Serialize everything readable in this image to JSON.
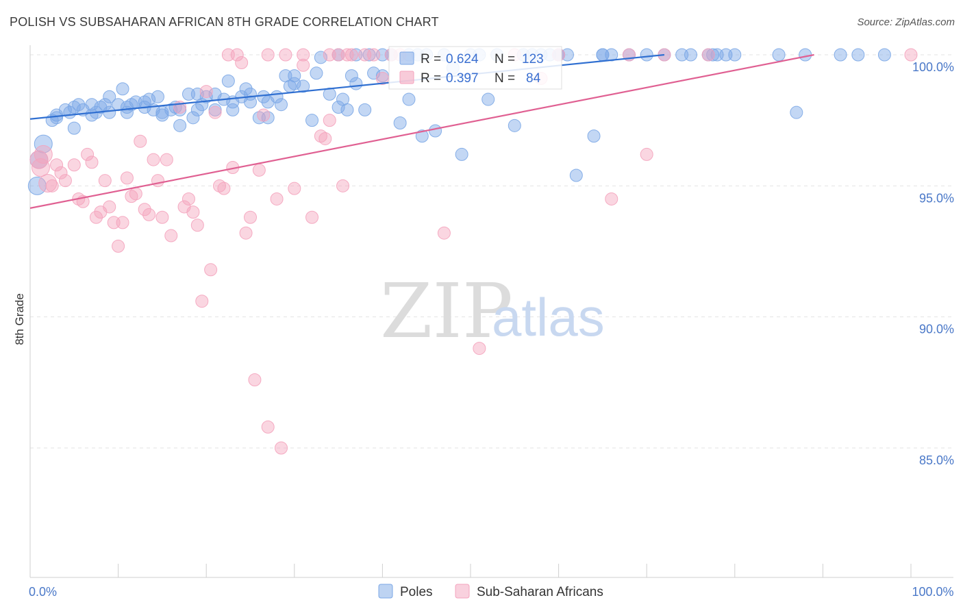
{
  "title": "POLISH VS SUBSAHARAN AFRICAN 8TH GRADE CORRELATION CHART",
  "source": "Source: ZipAtlas.com",
  "watermark": {
    "zip": "ZIP",
    "atlas": "atlas"
  },
  "legend_stats": [
    {
      "r_label": "R =",
      "r_value": "0.624",
      "n_label": "N =",
      "n_value": "123",
      "color": "#8fb3ea"
    },
    {
      "r_label": "R =",
      "r_value": "0.397",
      "n_label": "N =",
      "n_value": "84",
      "color": "#f4a8c0"
    }
  ],
  "chart_data": {
    "type": "scatter",
    "title": "POLISH VS SUBSAHARAN AFRICAN 8TH GRADE CORRELATION CHART",
    "xlabel": "",
    "ylabel": "8th Grade",
    "xlim": [
      0,
      100
    ],
    "ylim": [
      80.5,
      100.8
    ],
    "y_ticks": [
      {
        "value": 100,
        "label": "100.0%"
      },
      {
        "value": 95,
        "label": "95.0%"
      },
      {
        "value": 90,
        "label": "90.0%"
      },
      {
        "value": 85,
        "label": "85.0%"
      }
    ],
    "x_tick_labels": [
      {
        "value": 0,
        "label": "0.0%"
      },
      {
        "value": 100,
        "label": "100.0%"
      }
    ],
    "grid": true,
    "legend_position": "bottom",
    "series": [
      {
        "name": "Poles",
        "color": "#7ba7e6",
        "line_color": "#2f6fd1",
        "trend": {
          "x": [
            0,
            72
          ],
          "y": [
            97.55,
            100.0
          ]
        },
        "points": [
          [
            1,
            96.0
          ],
          [
            1.5,
            96.6
          ],
          [
            0.8,
            95.0
          ],
          [
            2.5,
            97.5
          ],
          [
            3,
            97.7
          ],
          [
            4,
            97.9
          ],
          [
            4.5,
            97.8
          ],
          [
            5,
            97.2
          ],
          [
            5.5,
            98.1
          ],
          [
            6,
            97.9
          ],
          [
            7,
            98.1
          ],
          [
            7.5,
            97.8
          ],
          [
            8,
            98.0
          ],
          [
            8.5,
            98.1
          ],
          [
            9,
            98.4
          ],
          [
            10,
            98.1
          ],
          [
            10.5,
            98.7
          ],
          [
            11,
            97.8
          ],
          [
            11.5,
            98.1
          ],
          [
            12,
            98.2
          ],
          [
            13,
            98.0
          ],
          [
            13.5,
            98.3
          ],
          [
            14,
            97.9
          ],
          [
            14.5,
            98.4
          ],
          [
            15,
            97.7
          ],
          [
            16,
            97.9
          ],
          [
            16.5,
            98.0
          ],
          [
            17,
            97.3
          ],
          [
            18,
            98.5
          ],
          [
            18.5,
            97.6
          ],
          [
            19,
            98.5
          ],
          [
            19.5,
            98.1
          ],
          [
            20,
            98.4
          ],
          [
            21,
            97.9
          ],
          [
            22,
            98.3
          ],
          [
            22.5,
            99.0
          ],
          [
            23,
            98.2
          ],
          [
            24,
            98.4
          ],
          [
            24.5,
            98.7
          ],
          [
            25,
            98.5
          ],
          [
            26,
            97.6
          ],
          [
            26.5,
            98.4
          ],
          [
            27,
            97.6
          ],
          [
            28,
            98.4
          ],
          [
            28.5,
            98.1
          ],
          [
            29,
            99.2
          ],
          [
            29.5,
            98.8
          ],
          [
            30,
            99.2
          ],
          [
            31,
            98.8
          ],
          [
            32,
            97.5
          ],
          [
            32.5,
            99.3
          ],
          [
            33,
            99.9
          ],
          [
            34,
            98.5
          ],
          [
            35,
            98.0
          ],
          [
            35.5,
            98.3
          ],
          [
            36,
            97.9
          ],
          [
            36.5,
            99.2
          ],
          [
            37,
            98.9
          ],
          [
            38,
            97.9
          ],
          [
            38.5,
            100
          ],
          [
            39,
            99.3
          ],
          [
            40,
            99.2
          ],
          [
            41,
            100
          ],
          [
            42,
            97.4
          ],
          [
            43,
            98.3
          ],
          [
            44,
            100
          ],
          [
            44.5,
            96.9
          ],
          [
            45,
            100
          ],
          [
            46,
            97.1
          ],
          [
            47,
            100
          ],
          [
            48,
            99.5
          ],
          [
            49,
            96.2
          ],
          [
            50,
            100
          ],
          [
            51,
            100
          ],
          [
            52,
            98.3
          ],
          [
            53,
            100
          ],
          [
            55,
            97.3
          ],
          [
            56,
            100
          ],
          [
            57,
            100
          ],
          [
            58,
            100
          ],
          [
            59,
            100
          ],
          [
            60,
            100
          ],
          [
            61,
            100
          ],
          [
            62,
            95.4
          ],
          [
            64,
            96.9
          ],
          [
            65,
            100
          ],
          [
            66,
            100
          ],
          [
            68,
            100
          ],
          [
            70,
            100
          ],
          [
            72,
            100
          ],
          [
            74,
            100
          ],
          [
            75,
            100
          ],
          [
            77,
            100
          ],
          [
            79,
            100
          ],
          [
            80,
            100
          ],
          [
            85,
            100
          ],
          [
            88,
            100
          ],
          [
            92,
            100
          ],
          [
            94,
            100
          ],
          [
            97,
            100
          ],
          [
            40,
            100
          ],
          [
            37,
            100
          ],
          [
            35,
            100
          ],
          [
            43,
            100
          ],
          [
            30,
            98.9
          ],
          [
            27,
            98.2
          ],
          [
            25,
            98.2
          ],
          [
            23,
            97.9
          ],
          [
            21,
            98.5
          ],
          [
            19,
            97.9
          ],
          [
            17,
            97.9
          ],
          [
            15,
            97.8
          ],
          [
            13,
            98.2
          ],
          [
            11,
            98.0
          ],
          [
            9,
            97.8
          ],
          [
            7,
            97.7
          ],
          [
            5,
            98.0
          ],
          [
            3,
            97.6
          ],
          [
            60,
            100
          ],
          [
            65,
            100
          ],
          [
            77.5,
            100
          ],
          [
            78,
            100
          ],
          [
            87,
            97.8
          ]
        ]
      },
      {
        "name": "Sub-Saharan Africans",
        "color": "#f4a3bd",
        "line_color": "#e06092",
        "trend": {
          "x": [
            0,
            89
          ],
          "y": [
            94.15,
            100.0
          ]
        },
        "points": [
          [
            1,
            96.0
          ],
          [
            1.2,
            95.7
          ],
          [
            1.5,
            96.2
          ],
          [
            2,
            95.1
          ],
          [
            2.5,
            95.0
          ],
          [
            3,
            95.8
          ],
          [
            3.5,
            95.5
          ],
          [
            4,
            95.2
          ],
          [
            5,
            95.8
          ],
          [
            5.5,
            94.5
          ],
          [
            6,
            94.4
          ],
          [
            6.5,
            96.2
          ],
          [
            7,
            95.9
          ],
          [
            7.5,
            93.8
          ],
          [
            8,
            94.0
          ],
          [
            8.5,
            95.2
          ],
          [
            9,
            94.2
          ],
          [
            9.5,
            93.6
          ],
          [
            10,
            92.7
          ],
          [
            10.5,
            93.6
          ],
          [
            11,
            95.3
          ],
          [
            11.5,
            94.6
          ],
          [
            12,
            94.7
          ],
          [
            12.5,
            96.7
          ],
          [
            13,
            94.1
          ],
          [
            13.5,
            93.9
          ],
          [
            14,
            96.0
          ],
          [
            14.5,
            95.2
          ],
          [
            15,
            93.8
          ],
          [
            15.5,
            96.0
          ],
          [
            16,
            93.1
          ],
          [
            17,
            98.0
          ],
          [
            17.5,
            94.2
          ],
          [
            18,
            94.5
          ],
          [
            18.5,
            94.0
          ],
          [
            19,
            93.5
          ],
          [
            19.5,
            90.6
          ],
          [
            20,
            98.6
          ],
          [
            20.5,
            91.8
          ],
          [
            21,
            97.8
          ],
          [
            21.5,
            95.0
          ],
          [
            22,
            94.9
          ],
          [
            23,
            95.7
          ],
          [
            24,
            99.7
          ],
          [
            24.5,
            93.2
          ],
          [
            25,
            93.8
          ],
          [
            25.5,
            87.6
          ],
          [
            26,
            95.6
          ],
          [
            26.5,
            97.7
          ],
          [
            27,
            85.8
          ],
          [
            28,
            94.5
          ],
          [
            28.5,
            85.0
          ],
          [
            29,
            100
          ],
          [
            30,
            94.9
          ],
          [
            31,
            99.6
          ],
          [
            32,
            93.8
          ],
          [
            33,
            96.9
          ],
          [
            33.5,
            96.8
          ],
          [
            34,
            97.5
          ],
          [
            35,
            100
          ],
          [
            35.5,
            95.0
          ],
          [
            36,
            100
          ],
          [
            38,
            100
          ],
          [
            40,
            99.1
          ],
          [
            41,
            100
          ],
          [
            42,
            100
          ],
          [
            47,
            93.2
          ],
          [
            51,
            88.8
          ],
          [
            55,
            100
          ],
          [
            58,
            99.1
          ],
          [
            60,
            100
          ],
          [
            66,
            94.5
          ],
          [
            68,
            100
          ],
          [
            70,
            96.2
          ],
          [
            72,
            100
          ],
          [
            77,
            100
          ],
          [
            22.5,
            100
          ],
          [
            23.5,
            100
          ],
          [
            27,
            100
          ],
          [
            31,
            100
          ],
          [
            34,
            100
          ],
          [
            36.5,
            100
          ],
          [
            39,
            100
          ],
          [
            100,
            100
          ]
        ]
      }
    ]
  }
}
